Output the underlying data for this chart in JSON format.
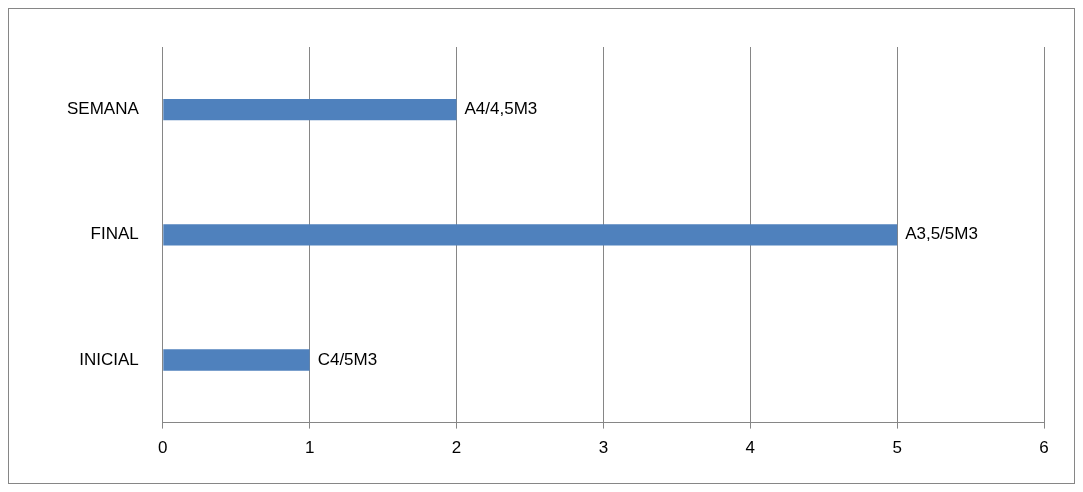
{
  "chart_data": {
    "type": "bar",
    "orientation": "horizontal",
    "categories": [
      "SEMANA",
      "FINAL",
      "INICIAL"
    ],
    "values": [
      2,
      5,
      1
    ],
    "color": "#4f81bd",
    "value_labels": [
      "A4/4,5M3",
      "A3,5/5M3",
      "C4/5M3"
    ],
    "xlim": [
      0,
      6
    ],
    "xticks": [
      0,
      1,
      2,
      3,
      4,
      5,
      6
    ],
    "grid": "x",
    "legend": false
  }
}
